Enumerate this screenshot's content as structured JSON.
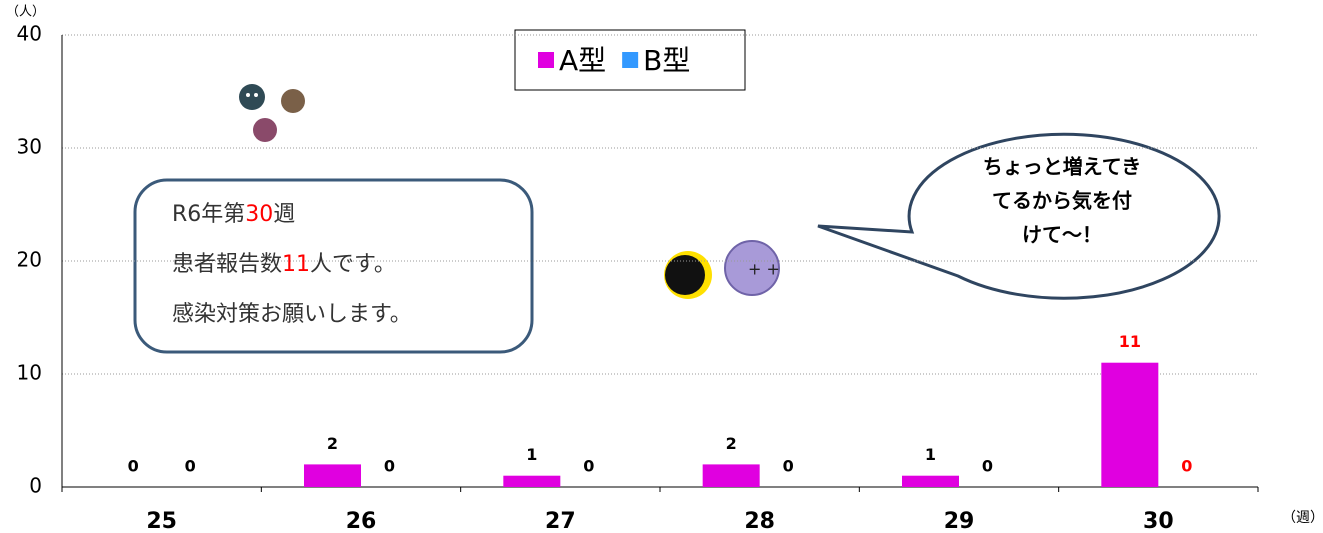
{
  "chart_data": {
    "type": "bar",
    "y_unit": "（人）",
    "x_unit": "（週）",
    "categories": [
      "25",
      "26",
      "27",
      "28",
      "29",
      "30"
    ],
    "series": [
      {
        "name": "A型",
        "color": "#e000e0",
        "values": [
          0,
          2,
          1,
          2,
          1,
          11
        ]
      },
      {
        "name": "B型",
        "color": "#3399ff",
        "values": [
          0,
          0,
          0,
          0,
          0,
          0
        ]
      }
    ],
    "label_colors": [
      "#000000",
      "#000000",
      "#000000",
      "#000000",
      "#000000",
      "#ff0000"
    ],
    "ylim": [
      0,
      40
    ],
    "yticks": [
      0,
      10,
      20,
      30,
      40
    ],
    "grid": true,
    "note_lines": [
      [
        "R6年第",
        "30",
        "週"
      ],
      [
        "患者報告数",
        "11",
        "人です。"
      ],
      [
        "感染対策お願いします。"
      ]
    ],
    "note_highlight_color": "#ff0000",
    "bubble_lines": [
      "ちょっと増えてき",
      "てるから気を付",
      "けて〜！"
    ]
  }
}
